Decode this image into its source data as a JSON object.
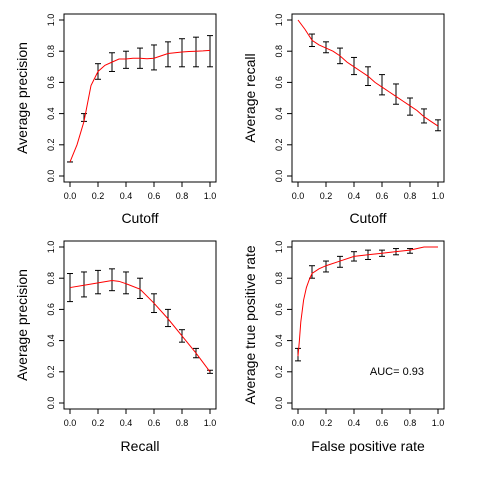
{
  "chart_data": [
    {
      "type": "line",
      "xlabel": "Cutoff",
      "ylabel": "Average precision",
      "xlim": [
        0,
        1
      ],
      "ylim": [
        0,
        1
      ],
      "xticks": [
        "0.0",
        "0.2",
        "0.4",
        "0.6",
        "0.8",
        "1.0"
      ],
      "yticks": [
        "0.0",
        "0.2",
        "0.4",
        "0.6",
        "0.8",
        "1.0"
      ],
      "line_color": "#ff0000",
      "curve": {
        "x": [
          0,
          0.05,
          0.1,
          0.15,
          0.2,
          0.25,
          0.3,
          0.35,
          0.4,
          0.45,
          0.5,
          0.55,
          0.6,
          0.65,
          0.7,
          0.75,
          0.8,
          0.85,
          0.9,
          0.95,
          1.0
        ],
        "y": [
          0.09,
          0.2,
          0.35,
          0.58,
          0.67,
          0.71,
          0.73,
          0.75,
          0.75,
          0.755,
          0.755,
          0.752,
          0.755,
          0.77,
          0.785,
          0.79,
          0.795,
          0.798,
          0.8,
          0.802,
          0.805
        ]
      },
      "error_bars": {
        "x": [
          0,
          0.1,
          0.2,
          0.3,
          0.4,
          0.5,
          0.6,
          0.7,
          0.8,
          0.9,
          1.0
        ],
        "low": [
          0.09,
          0.35,
          0.62,
          0.67,
          0.69,
          0.69,
          0.68,
          0.7,
          0.7,
          0.7,
          0.7
        ],
        "high": [
          0.09,
          0.4,
          0.72,
          0.79,
          0.8,
          0.82,
          0.84,
          0.86,
          0.88,
          0.89,
          0.9
        ]
      },
      "annotation": ""
    },
    {
      "type": "line",
      "xlabel": "Cutoff",
      "ylabel": "Average recall",
      "xlim": [
        0,
        1
      ],
      "ylim": [
        0,
        1
      ],
      "xticks": [
        "0.0",
        "0.2",
        "0.4",
        "0.6",
        "0.8",
        "1.0"
      ],
      "yticks": [
        "0.0",
        "0.2",
        "0.4",
        "0.6",
        "0.8",
        "1.0"
      ],
      "line_color": "#ff0000",
      "curve": {
        "x": [
          0,
          0.05,
          0.1,
          0.15,
          0.2,
          0.25,
          0.3,
          0.35,
          0.4,
          0.45,
          0.5,
          0.55,
          0.6,
          0.65,
          0.7,
          0.75,
          0.8,
          0.85,
          0.9,
          0.95,
          1.0
        ],
        "y": [
          1.0,
          0.94,
          0.87,
          0.84,
          0.82,
          0.8,
          0.77,
          0.73,
          0.7,
          0.67,
          0.64,
          0.6,
          0.57,
          0.54,
          0.51,
          0.48,
          0.45,
          0.42,
          0.38,
          0.35,
          0.32
        ]
      },
      "error_bars": {
        "x": [
          0.1,
          0.2,
          0.3,
          0.4,
          0.5,
          0.6,
          0.7,
          0.8,
          0.9,
          1.0
        ],
        "low": [
          0.83,
          0.79,
          0.72,
          0.65,
          0.58,
          0.52,
          0.46,
          0.39,
          0.34,
          0.29
        ],
        "high": [
          0.91,
          0.86,
          0.82,
          0.76,
          0.7,
          0.65,
          0.59,
          0.5,
          0.43,
          0.36
        ]
      },
      "annotation": ""
    },
    {
      "type": "line",
      "xlabel": "Recall",
      "ylabel": "Average precision",
      "xlim": [
        0,
        1
      ],
      "ylim": [
        0,
        1
      ],
      "xticks": [
        "0.0",
        "0.2",
        "0.4",
        "0.6",
        "0.8",
        "1.0"
      ],
      "yticks": [
        "0.0",
        "0.2",
        "0.4",
        "0.6",
        "0.8",
        "1.0"
      ],
      "line_color": "#ff0000",
      "curve": {
        "x": [
          0,
          0.1,
          0.2,
          0.3,
          0.35,
          0.4,
          0.5,
          0.6,
          0.7,
          0.8,
          0.9,
          1.0
        ],
        "y": [
          0.74,
          0.755,
          0.77,
          0.785,
          0.78,
          0.765,
          0.73,
          0.64,
          0.54,
          0.43,
          0.32,
          0.2
        ]
      },
      "error_bars": {
        "x": [
          0,
          0.1,
          0.2,
          0.3,
          0.4,
          0.5,
          0.6,
          0.7,
          0.8,
          0.9,
          1.0
        ],
        "low": [
          0.65,
          0.68,
          0.7,
          0.72,
          0.7,
          0.67,
          0.58,
          0.49,
          0.39,
          0.29,
          0.19
        ],
        "high": [
          0.83,
          0.84,
          0.85,
          0.86,
          0.84,
          0.8,
          0.7,
          0.6,
          0.47,
          0.35,
          0.21
        ]
      },
      "annotation": ""
    },
    {
      "type": "line",
      "xlabel": "False positive rate",
      "ylabel": "Average true positive rate",
      "xlim": [
        0,
        1
      ],
      "ylim": [
        0,
        1
      ],
      "xticks": [
        "0.0",
        "0.2",
        "0.4",
        "0.6",
        "0.8",
        "1.0"
      ],
      "yticks": [
        "0.0",
        "0.2",
        "0.4",
        "0.6",
        "0.8",
        "1.0"
      ],
      "line_color": "#ff0000",
      "curve": {
        "x": [
          0,
          0.01,
          0.02,
          0.04,
          0.06,
          0.08,
          0.1,
          0.15,
          0.2,
          0.3,
          0.4,
          0.5,
          0.6,
          0.7,
          0.8,
          0.9,
          1.0
        ],
        "y": [
          0.3,
          0.4,
          0.52,
          0.66,
          0.74,
          0.79,
          0.83,
          0.86,
          0.88,
          0.91,
          0.94,
          0.95,
          0.96,
          0.97,
          0.98,
          1.0,
          1.0
        ]
      },
      "error_bars": {
        "x": [
          0,
          0.1,
          0.2,
          0.3,
          0.4,
          0.5,
          0.6,
          0.7,
          0.8
        ],
        "low": [
          0.27,
          0.8,
          0.84,
          0.87,
          0.91,
          0.92,
          0.94,
          0.95,
          0.96
        ],
        "high": [
          0.35,
          0.88,
          0.91,
          0.94,
          0.97,
          0.98,
          0.98,
          0.99,
          0.99
        ]
      },
      "annotation": "AUC= 0.93"
    }
  ]
}
